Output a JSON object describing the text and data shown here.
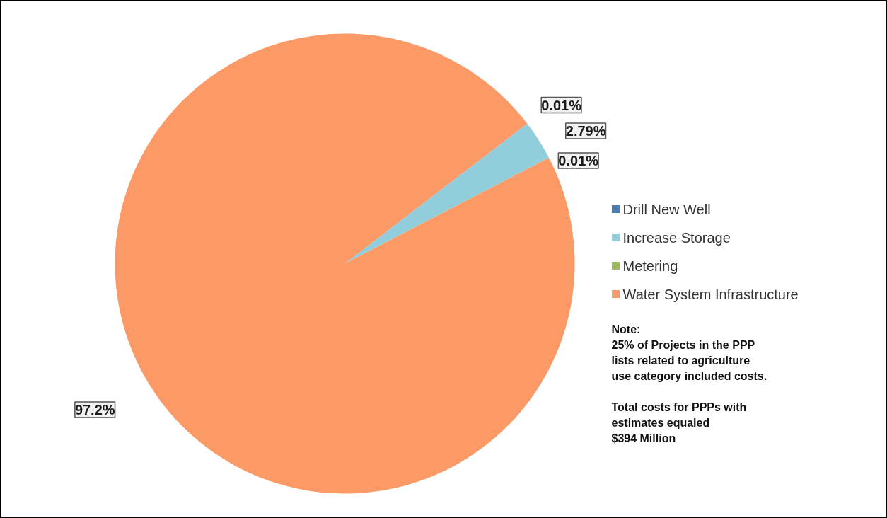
{
  "chart_data": {
    "type": "pie",
    "categories": [
      "Drill New Well",
      "Increase Storage",
      "Metering",
      "Water System Infrastructure"
    ],
    "values": [
      0.01,
      2.79,
      0.01,
      97.2
    ],
    "colors": [
      "#4a7ebb",
      "#92cddc",
      "#9bbb59",
      "#fb9a66"
    ],
    "value_labels": [
      "0.01%",
      "2.79%",
      "0.01%",
      "97.2%"
    ],
    "legend": "right",
    "annotations": [
      "Note:\n25% of Projects in the PPP\nlists related to agriculture\nuse category included costs.",
      "Total costs for PPPs with\nestimates equaled\n$394 Million"
    ]
  }
}
